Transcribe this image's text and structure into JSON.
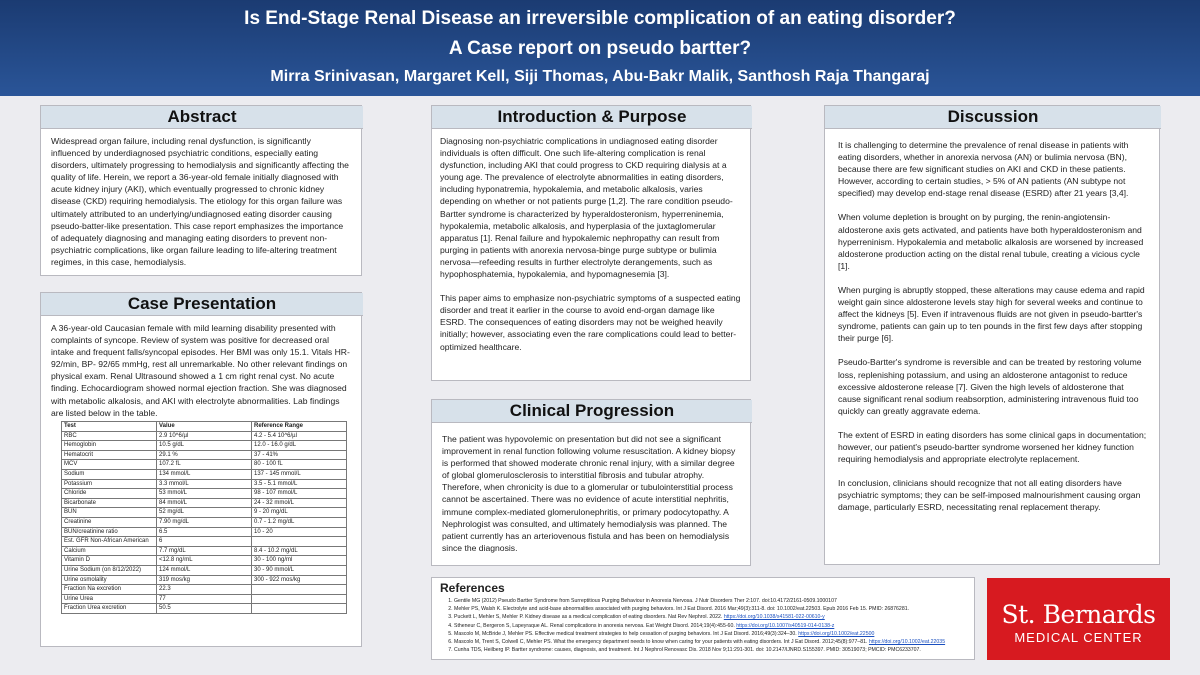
{
  "header": {
    "title": "Is End-Stage Renal Disease an irreversible complication of an eating disorder?",
    "subtitle": "A Case report on pseudo bartter?",
    "authors": "Mirra Srinivasan, Margaret Kell, Siji Thomas, Abu-Bakr Malik, Santhosh Raja Thangaraj"
  },
  "abstract": {
    "heading": "Abstract",
    "text": "Widespread organ failure, including renal dysfunction, is significantly influenced by underdiagnosed psychiatric conditions, especially eating disorders, ultimately progressing to hemodialysis and significantly affecting the quality of life. Herein, we report a 36-year-old female initially diagnosed with acute kidney injury (AKI), which eventually progressed to chronic kidney disease (CKD) requiring hemodialysis. The etiology for this organ failure was ultimately attributed to an underlying/undiagnosed eating disorder causing pseudo-batter-like presentation. This case report emphasizes the importance of adequately diagnosing and managing eating disorders to prevent non-psychiatric complications, like organ failure leading to life-altering treatment regimes, in this case, hemodialysis."
  },
  "case_presentation": {
    "heading": "Case Presentation",
    "text": "A 36-year-old Caucasian female with mild learning disability presented with complaints of syncope. Review of system was positive for decreased oral intake and frequent falls/syncopal episodes. Her BMI was only 15.1. Vitals HR- 92/min, BP- 92/65 mmHg, rest all unremarkable. No other relevant findings on physical exam. Renal Ultrasound showed a 1 cm right renal cyst. No acute finding. Echocardiogram showed normal ejection fraction. She was diagnosed with metabolic alkalosis, and AKI with electrolyte abnormalities. Lab findings are listed below in the table.",
    "table": {
      "header": [
        "Test",
        "Value",
        "Reference Range"
      ],
      "rows": [
        [
          "RBC",
          "2.9 10^6/µl",
          "4.2 - 5.4 10^6/µl"
        ],
        [
          "Hemoglobin",
          "10.5  g/dL",
          "12.0 - 16.0 g/dL"
        ],
        [
          "Hematocrit",
          "29.1 %",
          "37 - 41%"
        ],
        [
          "MCV",
          "107.2 fL",
          "80 - 100 fL"
        ],
        [
          "Sodium",
          "134 mmol/L",
          "137 - 145 mmol/L"
        ],
        [
          "Potassium",
          "3.3 mmol/L",
          "3.5 - 5.1 mmol/L"
        ],
        [
          "Chloride",
          "53 mmol/L",
          "98 - 107 mmol/L"
        ],
        [
          "Bicarbonate",
          "84 mmol/L",
          "24 - 32 mmol/L"
        ],
        [
          "BUN",
          "52 mg/dL",
          "9 - 20 mg/dL"
        ],
        [
          "Creatinine",
          "7.90 mg/dL",
          "0.7 - 1.2 mg/dL"
        ],
        [
          "BUN/creatinine ratio",
          "6.5",
          "10 - 20"
        ],
        [
          "Est. GFR Non-African American",
          "6",
          null
        ],
        [
          "Calcium",
          "7.7 mg/dL",
          "8.4 - 10.2 mg/dL"
        ],
        [
          "Vitamin D",
          "<12.8 ng/mL",
          "30 - 100 ng/ml"
        ],
        [
          "Urine Sodium (on 8/12/2022)",
          "124 mmol/L",
          "30 - 90 mmol/L"
        ],
        [
          "Urine osmolality",
          "319 mos/kg",
          "300 - 922 mos/kg"
        ],
        [
          "Fraction Na excretion",
          "22.3",
          null
        ],
        [
          "Urine Urea",
          "77",
          null
        ],
        [
          "Fraction Urea excretion",
          "50.5",
          null
        ]
      ]
    }
  },
  "introduction": {
    "heading": "Introduction & Purpose",
    "paragraphs": [
      "Diagnosing non-psychiatric complications in undiagnosed eating disorder individuals is often difficult. One such life-altering complication is renal dysfunction, including  AKI that could progress to CKD requiring dialysis at a young age. The prevalence of electrolyte abnormalities in eating disorders, including hyponatremia, hypokalemia, and metabolic alkalosis, varies depending on whether or not patients purge [1,2]. The rare condition pseudo-Bartter syndrome is characterized by hyperaldosteronism, hyperreninemia, hypokalemia, metabolic alkalosis, and hyperplasia of the juxtaglomerular apparatus [1]. Renal failure and hypokalemic nephropathy can result from purging in patients with anorexia nervosa-binge purge subtype or bulimia nervosa—refeeding results in further electrolyte derangements, such as hypophosphatemia, hypokalemia, and hypomagnesemia [3].",
      "This paper aims to emphasize non-psychiatric symptoms of a suspected eating disorder and treat it earlier in the course to avoid end-organ damage like ESRD. The consequences of eating disorders may not be weighed heavily initially; however, associating even the rare complications could lead to better-optimized healthcare."
    ]
  },
  "clinical_progression": {
    "heading": "Clinical Progression",
    "text": "The patient was hypovolemic on presentation but did not see a significant improvement in renal function following volume resuscitation. A kidney biopsy is performed that showed moderate chronic renal injury, with a similar degree of global glomerulosclerosis to interstitial fibrosis and tubular atrophy. Therefore, when chronicity is due to a glomerular or tubulointerstitial process cannot be ascertained. There was no evidence of acute interstitial nephritis, immune complex-mediated glomerulonephritis, or primary podocytopathy. A Nephrologist was consulted, and ultimately hemodialysis was planned. The patient currently has an arteriovenous fistula and has been on hemodialysis since the diagnosis."
  },
  "discussion": {
    "heading": "Discussion",
    "paragraphs": [
      "It is challenging to determine the prevalence of renal disease in patients with eating disorders, whether in anorexia nervosa (AN) or bulimia nervosa (BN), because there are few significant studies on AKI and CKD in these patients. However, according to certain studies, > 5% of AN patients (AN subtype not specified) may develop end-stage renal disease (ESRD) after 21 years [3,4].",
      "When volume depletion is brought on by purging, the renin-angiotensin-aldosterone axis gets activated, and patients have both hyperaldosteronism and hyperreninism. Hypokalemia and metabolic alkalosis are worsened by increased aldosterone production acting on the distal renal tubule, creating a vicious cycle [1].",
      "When purging is abruptly stopped, these alterations may cause edema and rapid weight gain since aldosterone levels stay high for several weeks and continue to affect the kidneys [5]. Even if intravenous fluids are not given in pseudo-bartter's syndrome, patients can gain up to ten pounds in the first few days after stopping their purge [6].",
      "Pseudo-Bartter's syndrome is reversible and can be treated by restoring volume loss, replenishing potassium, and using an aldosterone antagonist to reduce excessive aldosterone release [7]. Given the high levels of aldosterone that cause significant renal sodium reabsorption, administering intravenous fluid too quickly can greatly aggravate edema.",
      "The extent of ESRD in eating disorders has some clinical gaps in documentation; however, our patient's pseudo-bartter syndrome worsened her kidney function requiring hemodialysis and appropriate electrolyte replacement.",
      "In conclusion, clinicians should recognize that not all eating disorders have psychiatric symptoms; they can be self-imposed malnourishment causing organ damage, particularly ESRD, necessitating renal replacement therapy."
    ]
  },
  "references": {
    "heading": "References",
    "items": [
      {
        "text": "Gentile MG (2012) Pseudo Bartter Syndrome from Surreptitious Purging Behaviour in Anorexia Nervosa. J Nutr Disorders Ther 2:107. doi:10.4172/2161-0509.1000107"
      },
      {
        "text": "Mehler PS, Walsh K. Electrolyte and acid-base abnormalities associated with purging behaviors. Int J Eat Disord. 2016 Mar;49(3):311-8. doi: 10.1002/eat.22503. Epub 2016 Feb 15. PMID: 26876281."
      },
      {
        "text": "Puckett L, Mehler S, Mehler P. Kidney disease as a medical complication of eating disorders. Nat Rev Nephrol. 2022.",
        "link": "https://doi.org/10.1038/s41581-022-00610-y"
      },
      {
        "text": "Stheneur C, Bergeron S, Lapeyraque AL. Renal complications in anorexia nervosa. Eat Weight Disord. 2014;19(4):455-60.",
        "link": "https://doi.org/10.1007/s40519-014-0138-z"
      },
      {
        "text": "Mascolo M, McBride J, Mehler PS. Effective medical treatment strategies to help cessation of purging behaviors. Int J Eat Disord. 2016;49(3):324–30.",
        "link": "https://doi.org/10.1002/eat.22500"
      },
      {
        "text": "Mascolo M, Trent S, Colwell C, Mehler PS. What the emergency department needs to know when caring for your patients with eating disorders. Int J Eat Disord. 2012;45(8):977–81.",
        "link": "https://doi.org/10.1002/eat.22035"
      },
      {
        "text": "Cunha TDS, Heilberg IP. Bartter syndrome: causes, diagnosis, and treatment. Int J Nephrol Renovasc Dis. 2018 Nov 9;11:291-301. doi: 10.2147/IJNRD.S155397. PMID: 30519073; PMCID: PMC6233707."
      }
    ]
  },
  "logo": {
    "name": "St. Bernards",
    "tagline": "MEDICAL CENTER"
  }
}
